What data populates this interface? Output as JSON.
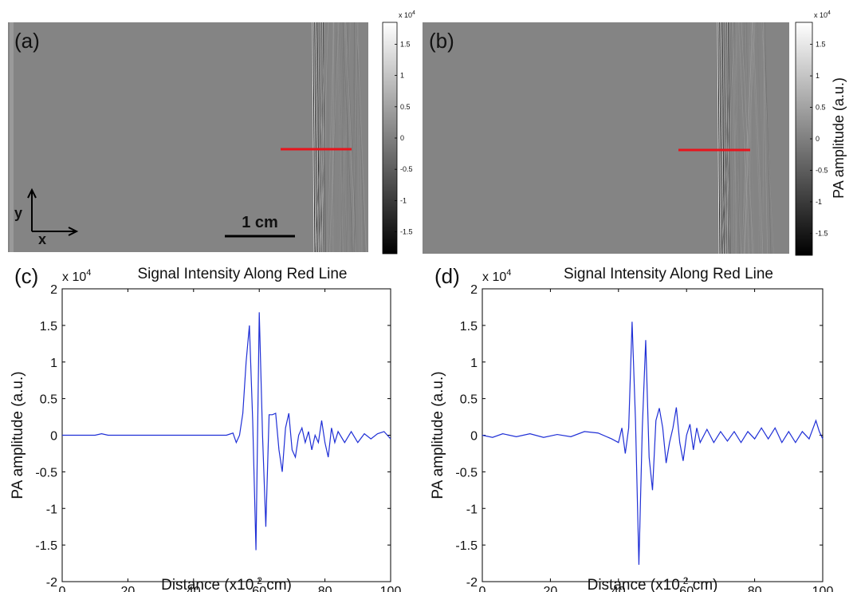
{
  "images": [
    {
      "label": "(a)",
      "scale_bar": "1 cm",
      "axis_y": "y",
      "axis_x": "x",
      "colorbar": {
        "multiplier_base": "x 10",
        "multiplier_exp": "4",
        "lim": [
          -1.85,
          1.85
        ],
        "ticks": [
          1.5,
          1,
          0.5,
          0,
          -0.5,
          -1,
          -1.5
        ]
      }
    },
    {
      "label": "(b)",
      "colorbar_label": "PA amplitude (a.u.)",
      "colorbar": {
        "multiplier_base": "x 10",
        "multiplier_exp": "4",
        "lim": [
          -1.85,
          1.85
        ],
        "ticks": [
          1.5,
          1,
          0.5,
          0,
          -0.5,
          -1,
          -1.5
        ]
      }
    }
  ],
  "chart_data": [
    {
      "type": "line",
      "panel_label": "(c)",
      "title": "Signal Intensity Along Red Line",
      "multiplier_base": "x 10",
      "multiplier_exp": "4",
      "xlabel_before": "Distance (x10",
      "xlabel_sup": "-2",
      "xlabel_after": " cm)",
      "ylabel": "PA amplitude (a.u.)",
      "xlim": [
        0,
        100
      ],
      "ylim": [
        -2,
        2
      ],
      "xticks": [
        0,
        20,
        40,
        60,
        80,
        100
      ],
      "yticks": [
        -2,
        -1.5,
        -1,
        -0.5,
        0,
        0.5,
        1,
        1.5,
        2
      ],
      "x": [
        0,
        5,
        10,
        12,
        14,
        20,
        30,
        40,
        48,
        50,
        52,
        53,
        54,
        55,
        56,
        57,
        58,
        59,
        60,
        61,
        62,
        63,
        64,
        65,
        66,
        67,
        68,
        69,
        70,
        71,
        72,
        73,
        74,
        75,
        76,
        77,
        78,
        79,
        80,
        81,
        82,
        83,
        84,
        86,
        88,
        90,
        92,
        94,
        96,
        98,
        100
      ],
      "series": [
        {
          "color": "#1f2fd6",
          "values": [
            0,
            0,
            0,
            0.02,
            0,
            0,
            0,
            0,
            0,
            0,
            0.03,
            -0.1,
            0,
            0.3,
            1.0,
            1.5,
            0.2,
            -1.57,
            1.68,
            0,
            -1.25,
            0.28,
            0.28,
            0.3,
            -0.2,
            -0.5,
            0.1,
            0.3,
            -0.2,
            -0.3,
            0,
            0.1,
            -0.1,
            0.05,
            -0.2,
            0,
            -0.1,
            0.2,
            -0.1,
            -0.3,
            0.1,
            -0.1,
            0.05,
            -0.1,
            0.05,
            -0.1,
            0.02,
            -0.05,
            0.02,
            0.05,
            -0.05
          ]
        }
      ]
    },
    {
      "type": "line",
      "panel_label": "(d)",
      "title": "Signal Intensity Along Red Line",
      "multiplier_base": "x 10",
      "multiplier_exp": "4",
      "xlabel_before": "Distance (x10",
      "xlabel_sup": "-2",
      "xlabel_after": " cm)",
      "ylabel": "PA amplitude (a.u.)",
      "xlim": [
        0,
        100
      ],
      "ylim": [
        -2,
        2
      ],
      "xticks": [
        0,
        20,
        40,
        60,
        80,
        100
      ],
      "yticks": [
        -2,
        -1.5,
        -1,
        -0.5,
        0,
        0.5,
        1,
        1.5,
        2
      ],
      "x": [
        0,
        3,
        6,
        10,
        14,
        18,
        22,
        26,
        30,
        34,
        38,
        40,
        41,
        42,
        43,
        44,
        45,
        46,
        47,
        48,
        49,
        50,
        51,
        52,
        53,
        54,
        55,
        56,
        57,
        58,
        59,
        60,
        61,
        62,
        63,
        64,
        66,
        68,
        70,
        72,
        74,
        76,
        78,
        80,
        82,
        84,
        86,
        88,
        90,
        92,
        94,
        96,
        98,
        99,
        100
      ],
      "series": [
        {
          "color": "#1f2fd6",
          "values": [
            0,
            -0.03,
            0.02,
            -0.02,
            0.02,
            -0.03,
            0.01,
            -0.02,
            0.05,
            0.03,
            -0.05,
            -0.1,
            0.1,
            -0.25,
            0.1,
            1.55,
            0.2,
            -1.77,
            0.1,
            1.3,
            -0.3,
            -0.75,
            0.2,
            0.37,
            0.1,
            -0.38,
            -0.1,
            0.1,
            0.38,
            -0.1,
            -0.35,
            0,
            0.15,
            -0.2,
            0.1,
            -0.1,
            0.08,
            -0.1,
            0.05,
            -0.08,
            0.05,
            -0.1,
            0.05,
            -0.05,
            0.1,
            -0.05,
            0.1,
            -0.1,
            0.05,
            -0.1,
            0.05,
            -0.05,
            0.2,
            0.05,
            -0.05
          ]
        }
      ]
    }
  ]
}
